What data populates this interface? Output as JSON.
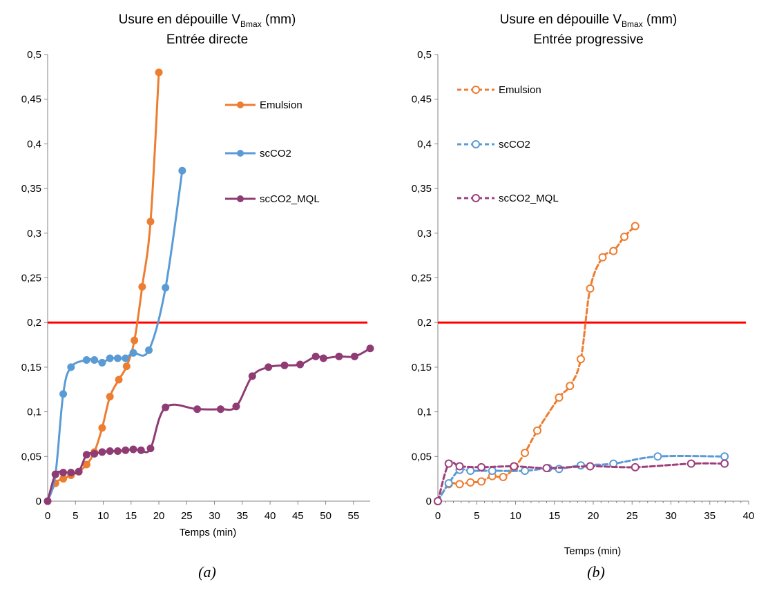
{
  "chart_data": [
    {
      "type": "line",
      "title_line1": "Usure en dépouille V",
      "title_sub": "Bmax",
      "title_unit": " (mm)",
      "title_line2": "Entrée directe",
      "xlabel": "Temps (min)",
      "ylabel": "",
      "caption": "(a)",
      "xlim": [
        0,
        58
      ],
      "ylim": [
        0,
        0.5
      ],
      "x_ticks": [
        0,
        5,
        10,
        15,
        20,
        25,
        30,
        35,
        40,
        45,
        50,
        55
      ],
      "x_tick_labels": [
        "0",
        "5",
        "10",
        "15",
        "20",
        "25",
        "30",
        "35",
        "40",
        "45",
        "50",
        "55"
      ],
      "y_ticks": [
        0,
        0.05,
        0.1,
        0.15,
        0.2,
        0.25,
        0.3,
        0.35,
        0.4,
        0.45,
        0.5
      ],
      "y_tick_labels": [
        "0",
        "0,05",
        "0,1",
        "0,15",
        "0,2",
        "0,25",
        "0,3",
        "0,35",
        "0,4",
        "0,45",
        "0,5"
      ],
      "threshold": 0.2,
      "marker_style": "filled",
      "line_style": "solid",
      "legend_position": "top-right",
      "series": [
        {
          "name": "Emulsion",
          "color": "#ED7D31",
          "x": [
            0,
            1.4,
            2.8,
            4.2,
            5.6,
            7.0,
            8.4,
            9.8,
            11.2,
            12.8,
            14.2,
            15.6,
            17.0,
            18.5,
            20.0
          ],
          "y": [
            0,
            0.02,
            0.025,
            0.029,
            0.033,
            0.041,
            0.055,
            0.082,
            0.117,
            0.136,
            0.151,
            0.18,
            0.24,
            0.313,
            0.48
          ]
        },
        {
          "name": "scCO2",
          "color": "#5B9BD5",
          "x": [
            0,
            1.4,
            2.8,
            4.2,
            7.0,
            8.4,
            9.8,
            11.2,
            12.6,
            14.0,
            15.4,
            18.2,
            21.2,
            24.2
          ],
          "y": [
            0,
            0.03,
            0.12,
            0.15,
            0.158,
            0.158,
            0.155,
            0.16,
            0.16,
            0.16,
            0.166,
            0.169,
            0.239,
            0.37
          ]
        },
        {
          "name": "scCO2_MQL",
          "color": "#8E3C73",
          "x": [
            0,
            1.4,
            2.8,
            4.2,
            5.6,
            7.0,
            8.4,
            9.8,
            11.2,
            12.6,
            14.0,
            15.4,
            16.8,
            18.5,
            21.2,
            26.9,
            31.1,
            33.9,
            36.8,
            39.7,
            42.6,
            45.4,
            48.2,
            49.6,
            52.4,
            55.2,
            58.0
          ],
          "y": [
            0,
            0.03,
            0.032,
            0.032,
            0.033,
            0.052,
            0.053,
            0.055,
            0.056,
            0.056,
            0.057,
            0.058,
            0.057,
            0.059,
            0.105,
            0.103,
            0.103,
            0.106,
            0.14,
            0.15,
            0.152,
            0.153,
            0.162,
            0.16,
            0.162,
            0.162,
            0.171
          ]
        }
      ]
    },
    {
      "type": "line",
      "title_line1": "Usure en dépouille V",
      "title_sub": "Bmax",
      "title_unit": " (mm)",
      "title_line2": "Entrée progressive",
      "xlabel": "Temps (min)",
      "ylabel": "",
      "caption": "(b)",
      "xlim": [
        0,
        40
      ],
      "ylim": [
        0,
        0.5
      ],
      "x_ticks": [
        0,
        5,
        10,
        15,
        20,
        25,
        30,
        35,
        40
      ],
      "x_tick_labels": [
        "0",
        "5",
        "10",
        "15",
        "20",
        "25",
        "30",
        "35",
        "40"
      ],
      "y_ticks": [
        0,
        0.05,
        0.1,
        0.15,
        0.2,
        0.25,
        0.3,
        0.35,
        0.4,
        0.45,
        0.5
      ],
      "y_tick_labels": [
        "0",
        "0,05",
        "0,1",
        "0,15",
        "0,2",
        "0,25",
        "0,3",
        "0,35",
        "0,4",
        "0,45",
        "0,5"
      ],
      "threshold": 0.2,
      "marker_style": "hollow",
      "line_style": "dashed",
      "legend_position": "top-left",
      "series": [
        {
          "name": "Emulsion",
          "color": "#ED7D31",
          "x": [
            0,
            1.4,
            2.8,
            4.2,
            5.6,
            7.0,
            8.4,
            9.8,
            11.2,
            12.8,
            15.6,
            17.0,
            18.4,
            19.6,
            21.2,
            22.6,
            24.0,
            25.4
          ],
          "y": [
            0,
            0.019,
            0.019,
            0.021,
            0.022,
            0.028,
            0.027,
            0.037,
            0.054,
            0.079,
            0.116,
            0.129,
            0.159,
            0.238,
            0.273,
            0.28,
            0.296,
            0.308
          ]
        },
        {
          "name": "scCO2",
          "color": "#5B9BD5",
          "x": [
            0,
            1.4,
            2.8,
            4.2,
            7.0,
            11.2,
            14.2,
            15.6,
            18.4,
            22.6,
            28.3,
            36.9
          ],
          "y": [
            0,
            0.02,
            0.035,
            0.034,
            0.034,
            0.034,
            0.037,
            0.036,
            0.04,
            0.042,
            0.05,
            0.05
          ]
        },
        {
          "name": "scCO2_MQL",
          "color": "#9E3F7C",
          "x": [
            0,
            1.4,
            2.8,
            5.6,
            9.8,
            14.0,
            19.6,
            25.4,
            32.6,
            36.9
          ],
          "y": [
            0,
            0.042,
            0.039,
            0.038,
            0.039,
            0.037,
            0.039,
            0.038,
            0.042,
            0.042
          ]
        }
      ]
    }
  ],
  "colors": {
    "threshold": "#FF0000",
    "axis": "#868686",
    "background": "#FFFFFF"
  }
}
